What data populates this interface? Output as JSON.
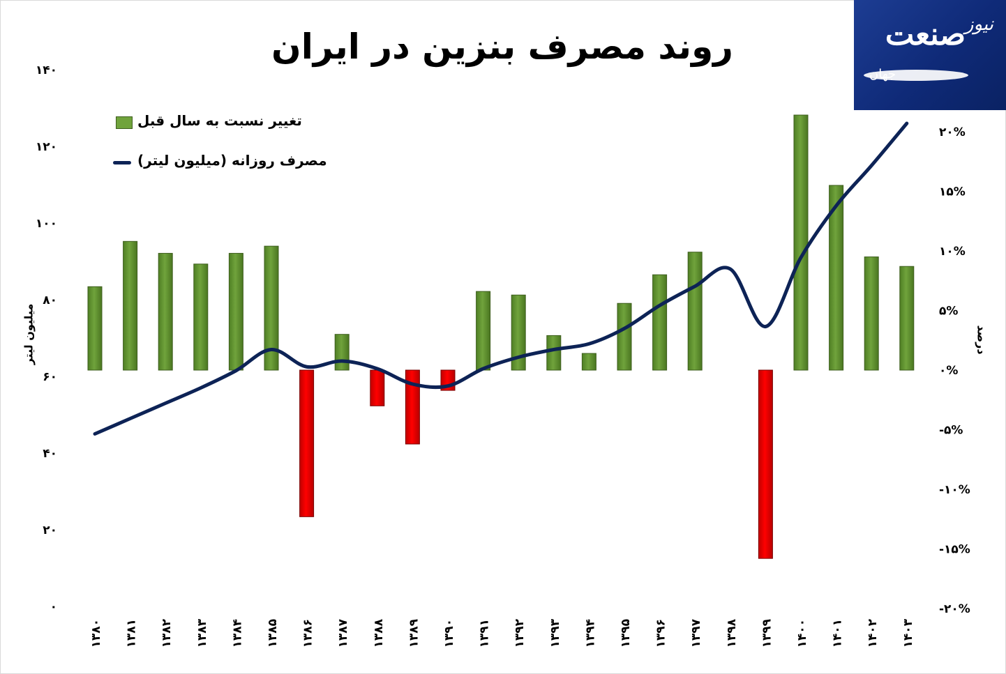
{
  "title": "روند مصرف بنزین در ایران",
  "logo": {
    "brand": "صنعت",
    "suffix": "نیوز",
    "prefix": "جهان"
  },
  "legend": {
    "bar_label": "تغییر نسبت به سال قبل",
    "line_label": "مصرف روزانه (میلیون لیتر)"
  },
  "colors": {
    "positive_bar": "#70a33c",
    "negative_bar": "#ff0000",
    "line": "#0d2356"
  },
  "chart_data": {
    "type": "bar+line",
    "title": "روند مصرف بنزین در ایران",
    "categories": [
      "۱۳۸۰",
      "۱۳۸۱",
      "۱۳۸۲",
      "۱۳۸۳",
      "۱۳۸۴",
      "۱۳۸۵",
      "۱۳۸۶",
      "۱۳۸۷",
      "۱۳۸۸",
      "۱۳۸۹",
      "۱۳۹۰",
      "۱۳۹۱",
      "۱۳۹۲",
      "۱۳۹۳",
      "۱۳۹۴",
      "۱۳۹۵",
      "۱۳۹۶",
      "۱۳۹۷",
      "۱۳۹۸",
      "۱۳۹۹",
      "۱۴۰۰",
      "۱۴۰۱",
      "۱۴۰۲",
      "۱۴۰۳"
    ],
    "series": [
      {
        "name": "تغییر نسبت به سال قبل",
        "type": "bar",
        "axis": "right",
        "unit": "%",
        "values": [
          7.0,
          10.8,
          9.8,
          8.9,
          9.8,
          10.4,
          -12.3,
          3.0,
          -3.0,
          -6.2,
          -1.7,
          6.6,
          6.3,
          2.9,
          1.4,
          5.6,
          8.0,
          9.9,
          null,
          -15.8,
          21.4,
          15.5,
          9.5,
          8.7
        ]
      },
      {
        "name": "مصرف روزانه (میلیون لیتر)",
        "type": "line",
        "axis": "left",
        "values": [
          45,
          49,
          53,
          57,
          61.5,
          67,
          62.5,
          64,
          62,
          58,
          57.5,
          62,
          65,
          67,
          68.5,
          72.5,
          78.5,
          83.5,
          88,
          73,
          91,
          104.5,
          115,
          126
        ]
      }
    ],
    "y_left": {
      "label": "میلیون لیتر",
      "ylim": [
        0,
        140
      ],
      "ticks": [
        "۰",
        "۲۰",
        "۴۰",
        "۶۰",
        "۸۰",
        "۱۰۰",
        "۱۲۰",
        "۱۴۰"
      ]
    },
    "y_right": {
      "label": "درصد",
      "ylim": [
        -20,
        20
      ],
      "ticks": [
        "-۲۰%",
        "-۱۵%",
        "-۱۰%",
        "-۵%",
        "۰%",
        "۵%",
        "۱۰%",
        "۱۵%",
        "۲۰%"
      ]
    },
    "grid": false,
    "legend_position": "top-left"
  }
}
